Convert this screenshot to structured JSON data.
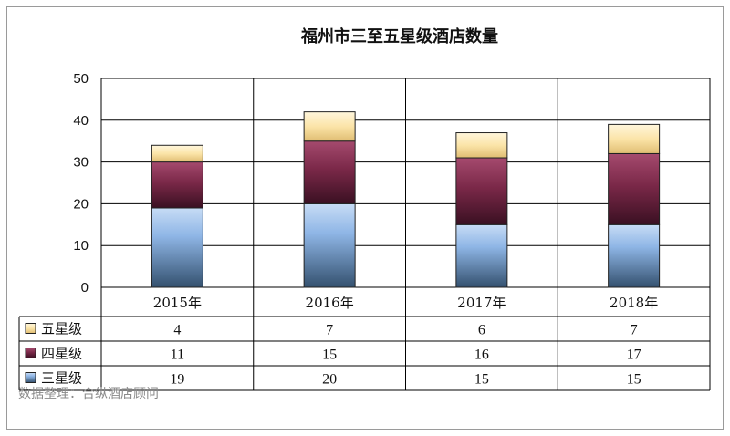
{
  "chart_data": {
    "type": "bar",
    "stacked": true,
    "title": "福州市三至五星级酒店数量",
    "categories": [
      "2015年",
      "2016年",
      "2017年",
      "2018年"
    ],
    "series": [
      {
        "name": "三星级",
        "values": [
          19,
          20,
          15,
          15
        ],
        "color": "#4f81bd"
      },
      {
        "name": "四星级",
        "values": [
          11,
          15,
          16,
          17
        ],
        "color": "#7a2848"
      },
      {
        "name": "五星级",
        "values": [
          4,
          7,
          6,
          7
        ],
        "color": "#f3d898"
      }
    ],
    "y_ticks": [
      "0",
      "10",
      "20",
      "30",
      "40",
      "50"
    ],
    "ylim": [
      0,
      50
    ],
    "grid": true,
    "data_table": true,
    "legend": "left, inside data table"
  },
  "source_note": "数据整理：合纵酒店顾问"
}
